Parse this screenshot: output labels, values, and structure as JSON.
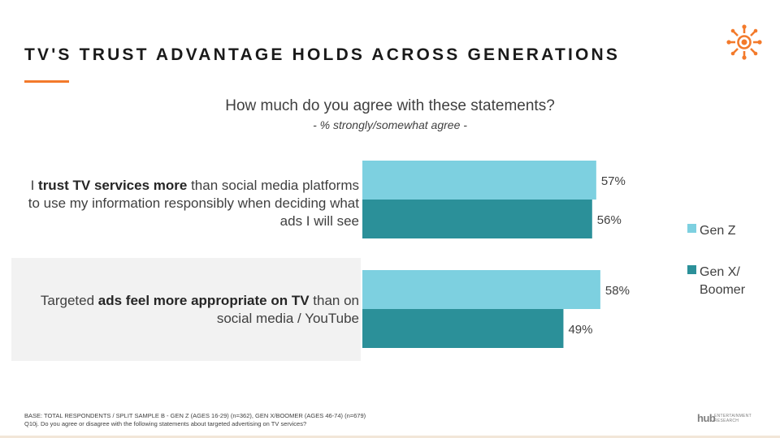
{
  "header": {
    "title": "TV'S TRUST ADVANTAGE HOLDS ACROSS GENERATIONS"
  },
  "question": "How much do you agree with these statements?",
  "subquestion": "- % strongly/somewhat agree -",
  "statements": [
    {
      "parts": [
        {
          "text": "I ",
          "bold": false
        },
        {
          "text": "trust TV services more",
          "bold": true
        },
        {
          "text": " than social media platforms to use my information responsibly when deciding what ads I will see",
          "bold": false
        }
      ]
    },
    {
      "parts": [
        {
          "text": "Targeted ",
          "bold": false
        },
        {
          "text": "ads feel more appropriate on TV",
          "bold": true
        },
        {
          "text": " than on social media / YouTube",
          "bold": false
        }
      ]
    }
  ],
  "chart_data": {
    "type": "bar",
    "orientation": "horizontal",
    "categories": [
      "I trust TV services more than social media platforms to use my information responsibly when deciding what ads I will see",
      "Targeted ads feel more appropriate on TV than on social media / YouTube"
    ],
    "series": [
      {
        "name": "Gen Z",
        "values": [
          57,
          58
        ],
        "labels": [
          "57%",
          "58%"
        ],
        "color": "#7dd0e0"
      },
      {
        "name": "Gen X/ Boomer",
        "values": [
          56,
          49
        ],
        "labels": [
          "56%",
          "49%"
        ],
        "color": "#2b9099"
      }
    ],
    "xlim": [
      0,
      100
    ],
    "grid": false,
    "legend_position": "right"
  },
  "legend": [
    {
      "label_lines": [
        "Gen Z"
      ],
      "color": "#7dd0e0"
    },
    {
      "label_lines": [
        "Gen X/",
        "Boomer"
      ],
      "color": "#2b9099"
    }
  ],
  "footnote": {
    "base": "BASE: TOTAL RESPONDENTS / SPLIT SAMPLE B - GEN Z (AGES 16-29) (n=362), GEN X/BOOMER (AGES 46-74) (n=679)",
    "question": "Q10j. Do you agree or disagree with the following statements about targeted advertising on TV services?"
  },
  "brand": {
    "name": "hub",
    "tagline": "ENTERTAINMENT RESEARCH"
  },
  "colors": {
    "accent": "#f37a2b",
    "gen_z": "#7dd0e0",
    "gen_x_boomer": "#2b9099"
  }
}
